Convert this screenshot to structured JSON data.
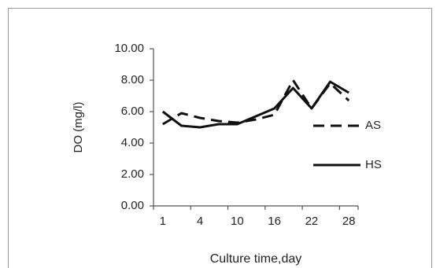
{
  "chart_data": {
    "type": "line",
    "xlabel": "Culture time,day",
    "ylabel": "DO (mg/l)",
    "categories": [
      "1",
      null,
      "4",
      null,
      "10",
      null,
      "16",
      null,
      "22",
      null,
      "28"
    ],
    "series": [
      {
        "name": "AS",
        "color": "#111111",
        "dash": true,
        "values": [
          5.2,
          5.9,
          5.6,
          5.4,
          5.3,
          5.5,
          5.8,
          8.0,
          6.2,
          7.8,
          6.7
        ]
      },
      {
        "name": "HS",
        "color": "#111111",
        "dash": false,
        "values": [
          6.0,
          5.1,
          5.0,
          5.2,
          5.2,
          5.7,
          6.2,
          7.5,
          6.2,
          7.9,
          7.2
        ]
      }
    ],
    "ylim": [
      0,
      10
    ],
    "yticks": [
      {
        "value": 0,
        "label": "0.00"
      },
      {
        "value": 2,
        "label": "2.00"
      },
      {
        "value": 4,
        "label": "4.00"
      },
      {
        "value": 6,
        "label": "6.00"
      },
      {
        "value": 8,
        "label": "8.00"
      },
      {
        "value": 10,
        "label": "10.00"
      }
    ],
    "grid": false,
    "legend": "right"
  }
}
